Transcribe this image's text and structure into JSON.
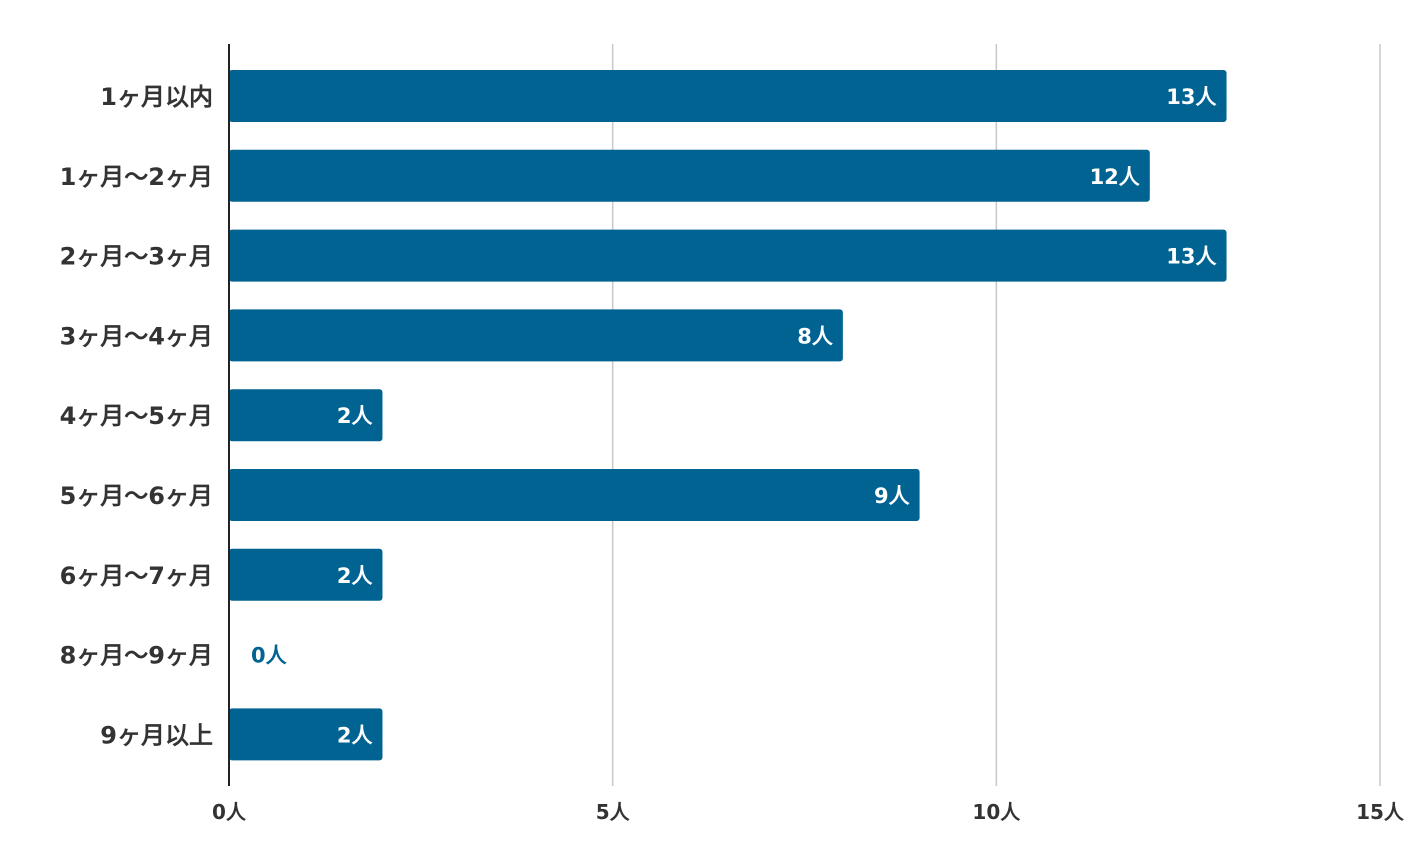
{
  "chart_data": {
    "type": "bar",
    "orientation": "horizontal",
    "categories": [
      "1ヶ月以内",
      "1ヶ月〜2ヶ月",
      "2ヶ月〜3ヶ月",
      "3ヶ月〜4ヶ月",
      "4ヶ月〜5ヶ月",
      "5ヶ月〜6ヶ月",
      "6ヶ月〜7ヶ月",
      "8ヶ月〜9ヶ月",
      "9ヶ月以上"
    ],
    "values": [
      13,
      12,
      13,
      8,
      2,
      9,
      2,
      0,
      2
    ],
    "value_unit": "人",
    "title": "",
    "xlabel": "",
    "ylabel": "",
    "xlim": [
      0,
      15
    ],
    "x_ticks": [
      0,
      5,
      10,
      15
    ],
    "x_tick_labels": [
      "0人",
      "5人",
      "10人",
      "15人"
    ],
    "grid": true,
    "legend": "none",
    "colors": {
      "bar": "#006391",
      "label_inside": "#ffffff",
      "label_outside": "#006391",
      "category_text": "#333333",
      "grid": "#c8c8c8",
      "axis": "#222222"
    }
  }
}
